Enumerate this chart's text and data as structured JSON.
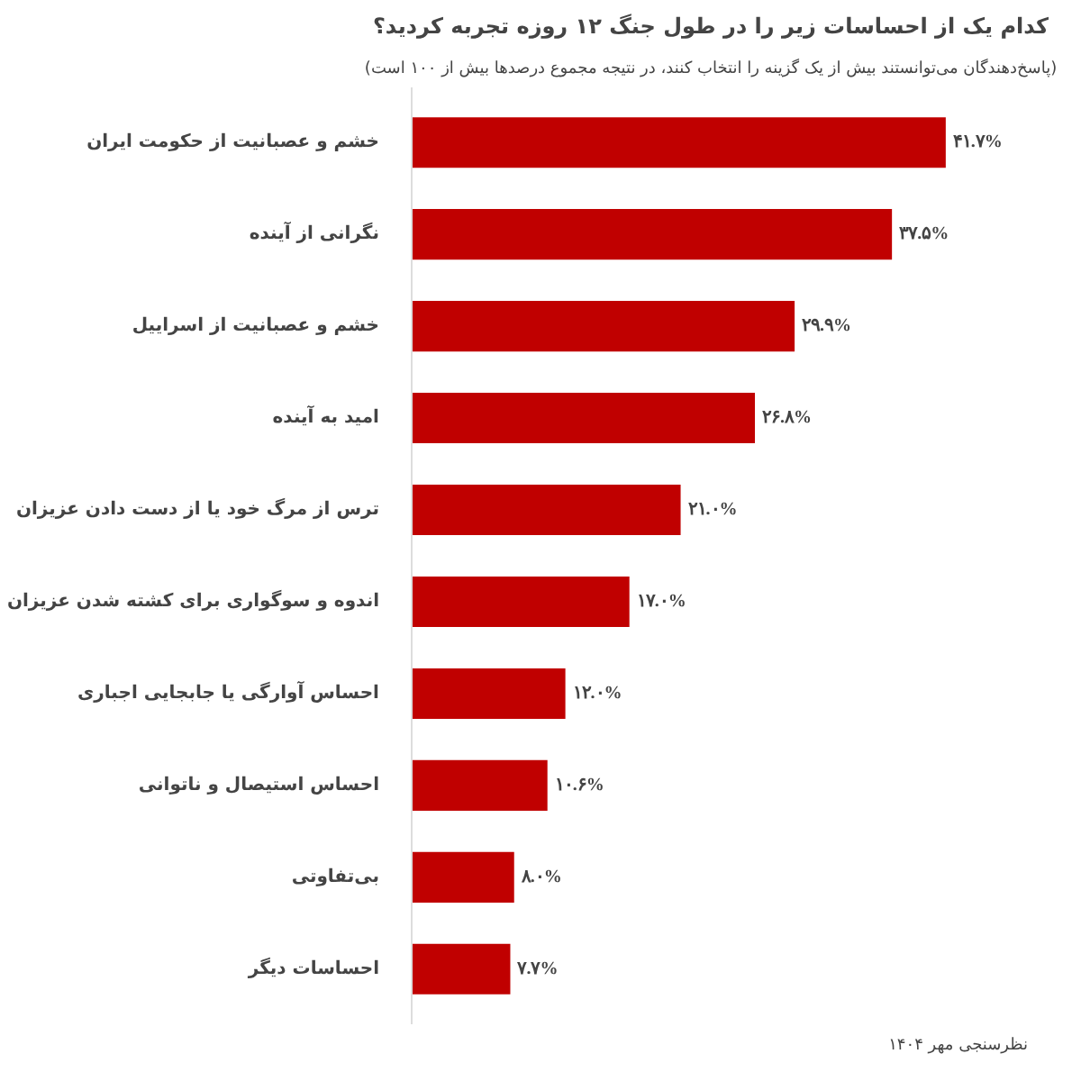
{
  "chart_data": {
    "type": "bar",
    "orientation": "horizontal",
    "title": "کدام یک از احساسات زیر را در طول جنگ ۱۲ روزه تجربه کردید؟",
    "subtitle": "(پاسخ‌دهندگان می‌توانستند بیش از یک گزینه را انتخاب کنند، در نتیجه مجموع درصدها بیش از ۱۰۰ است)",
    "categories": [
      "خشم و عصبانیت از حکومت ایران",
      "نگرانی از آینده",
      "خشم و عصبانیت از اسراییل",
      "امید به آینده",
      "ترس از مرگ خود یا از دست دادن عزیزان",
      "اندوه و سوگواری برای کشته شدن عزیزان",
      "احساس آوارگی یا جابجایی اجباری",
      "احساس استیصال و ناتوانی",
      "بی‌تفاوتی",
      "احساسات دیگر"
    ],
    "values": [
      41.7,
      37.5,
      29.9,
      26.8,
      21.0,
      17.0,
      12.0,
      10.6,
      8.0,
      7.7
    ],
    "value_labels": [
      "۴۱.۷%",
      "۳۷.۵%",
      "۲۹.۹%",
      "۲۶.۸%",
      "۲۱.۰%",
      "۱۷.۰%",
      "۱۲.۰%",
      "۱۰.۶%",
      "۸.۰%",
      "۷.۷%"
    ],
    "color": "#c00000",
    "grid": false,
    "annotations": [
      "نظرسنجی مهر ۱۴۰۴"
    ]
  }
}
